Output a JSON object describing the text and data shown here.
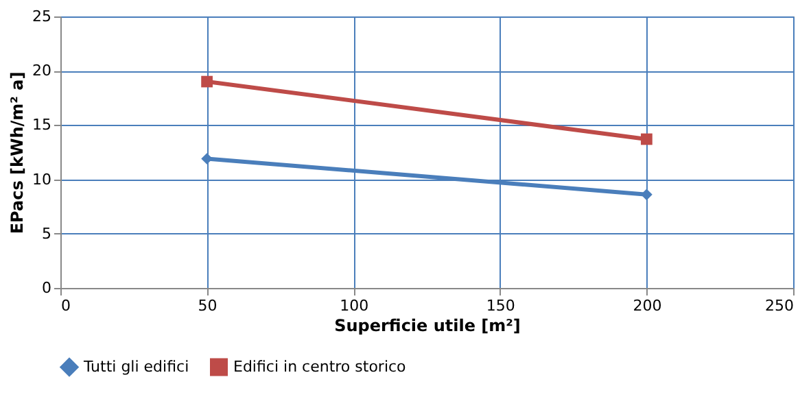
{
  "chart_data": {
    "type": "line",
    "xlabel": "Superficie utile [m²]",
    "ylabel": "EPacs [kWh/m² a]",
    "x": [
      50,
      200
    ],
    "series": [
      {
        "name": "Tutti gli edifici",
        "color": "#4a7ebb",
        "values": [
          11.9,
          8.6
        ],
        "marker": "diamond"
      },
      {
        "name": "Edifici in centro storico",
        "color": "#be4b48",
        "values": [
          19.0,
          13.7
        ],
        "marker": "square"
      }
    ],
    "xlim": [
      0,
      250
    ],
    "xticks": [
      0,
      50,
      100,
      150,
      200,
      250
    ],
    "ylim": [
      0,
      25
    ],
    "yticks": [
      0,
      5,
      10,
      15,
      20,
      25
    ],
    "grid": true,
    "legend": "bottom",
    "line_style": "solid"
  }
}
